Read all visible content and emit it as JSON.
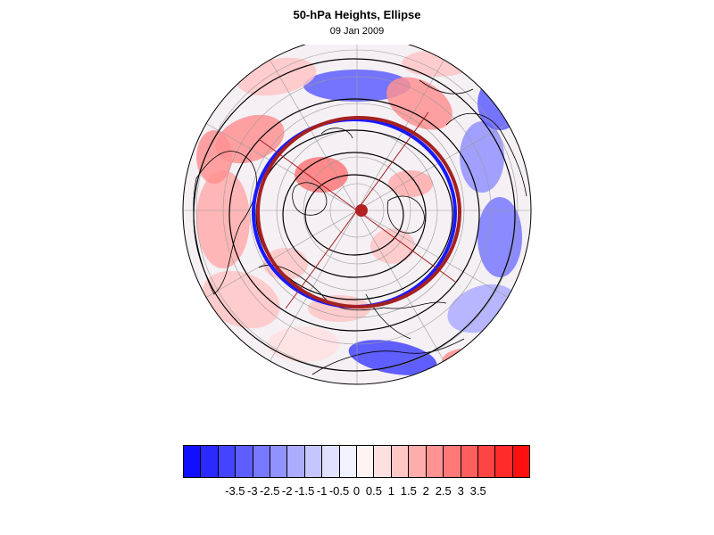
{
  "title": "50-hPa Heights, Ellipse",
  "subtitle": "09 Jan 2009",
  "map": {
    "projection": "north-polar-stereographic",
    "field": "50-hPa height anomaly (shaded)",
    "contours": "50-hPa heights (black lines)",
    "ellipse_fitted": {
      "color": "#a52020"
    },
    "ellipse_alt": {
      "color": "#1a1aff"
    },
    "center_marker_color": "#b22222",
    "coastline_color": "#000000",
    "graticule_color": "#9a9a9a"
  },
  "colorbar": {
    "colors": [
      "#1010ff",
      "#2a2aff",
      "#4444ff",
      "#5e5eff",
      "#7878ff",
      "#9292ff",
      "#acacff",
      "#c6c6ff",
      "#e0e0ff",
      "#f3f3ff",
      "#fff3f3",
      "#ffe0e0",
      "#ffc6c6",
      "#ffacac",
      "#ff9292",
      "#ff7878",
      "#ff5e5e",
      "#ff4444",
      "#ff2a2a",
      "#ff1010"
    ],
    "labels": [
      "-3.5",
      "-3",
      "-2.5",
      "-2",
      "-1.5",
      "-1",
      "-0.5",
      "0",
      "0.5",
      "1",
      "1.5",
      "2",
      "2.5",
      "3",
      "3.5"
    ]
  }
}
